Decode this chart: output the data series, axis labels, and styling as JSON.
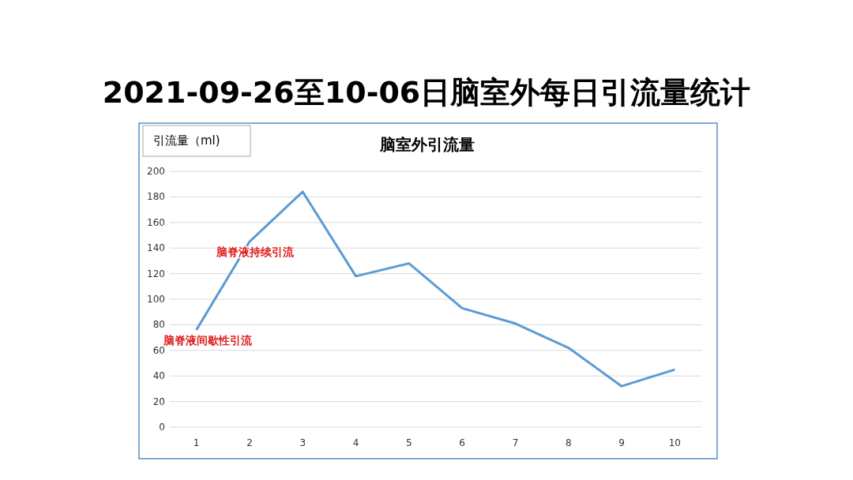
{
  "chart_data": {
    "type": "line",
    "title": "2021-09-26至10-06日脑室外每日引流量统计",
    "subtitle": "脑室外引流量",
    "ylabel": "引流量（ml)",
    "categories": [
      "1",
      "2",
      "3",
      "4",
      "5",
      "6",
      "7",
      "8",
      "9",
      "10"
    ],
    "series": [
      {
        "color": "#5b9bd5",
        "values": [
          76,
          145,
          184,
          118,
          128,
          93,
          81,
          62,
          32,
          45
        ]
      }
    ],
    "ylim": [
      0,
      200
    ],
    "yticks": [
      0,
      20,
      40,
      60,
      80,
      100,
      120,
      140,
      160,
      180,
      200
    ],
    "grid": "y",
    "line_style": "solid",
    "annotations": [
      {
        "text": "脑脊液间歇性引流",
        "x": "1",
        "y": 76
      },
      {
        "text": "脑脊液持续引流",
        "x": "2",
        "y": 145
      }
    ]
  }
}
